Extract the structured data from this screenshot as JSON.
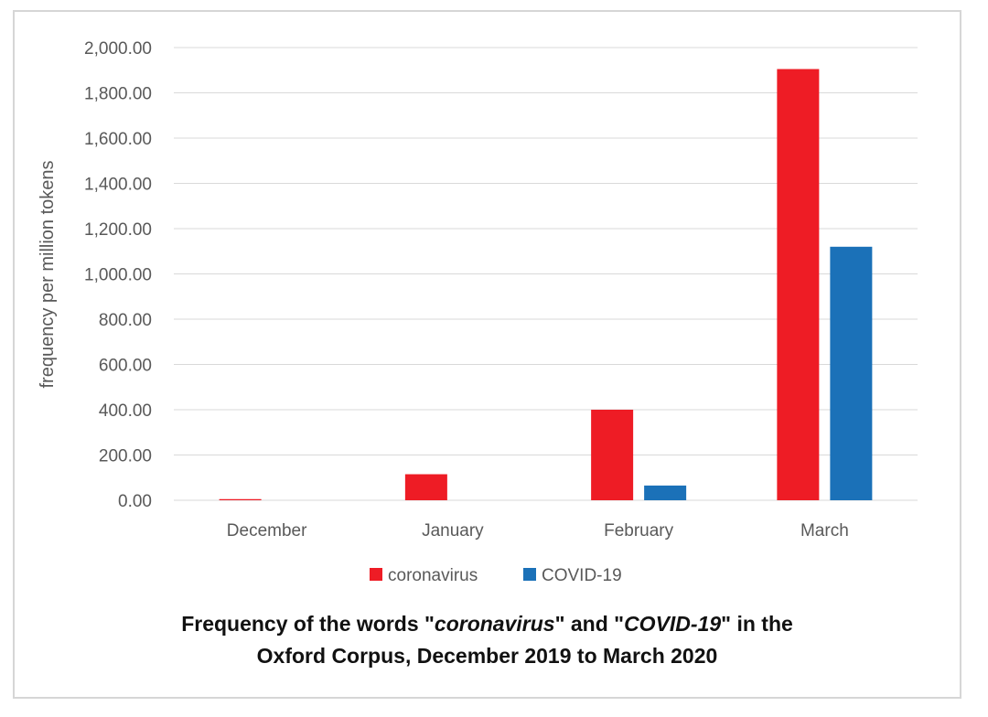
{
  "chart_data": {
    "type": "bar",
    "categories": [
      "December",
      "January",
      "February",
      "March"
    ],
    "series": [
      {
        "name": "coronavirus",
        "color": "#ee1c25",
        "values": [
          5,
          115,
          400,
          1905
        ]
      },
      {
        "name": "COVID-19",
        "color": "#1b71b8",
        "values": [
          0,
          0,
          65,
          1120
        ]
      }
    ],
    "xlabel": "",
    "ylabel": "frequency per million tokens",
    "ylim": [
      0,
      2000
    ],
    "yticks": [
      "0.00",
      "200.00",
      "400.00",
      "600.00",
      "800.00",
      "1,000.00",
      "1,200.00",
      "1,400.00",
      "1,600.00",
      "1,800.00",
      "2,000.00"
    ],
    "grid": true,
    "legend_position": "bottom"
  },
  "caption": {
    "line1_prefix": "Frequency of the words \"",
    "term1": "coronavirus",
    "mid": "\" and \"",
    "term2": "COVID-19",
    "line1_suffix": "\" in the",
    "line2": "Oxford Corpus, December 2019 to March 2020"
  }
}
